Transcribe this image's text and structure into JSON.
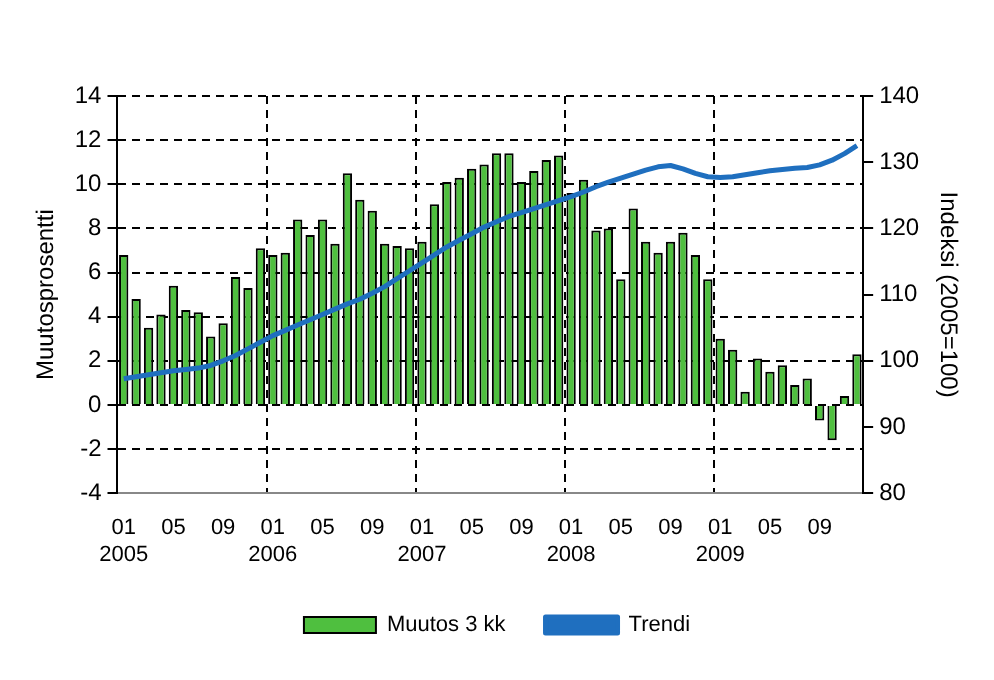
{
  "chart_data": {
    "type": "bar",
    "ylabel": "Muutosprosentti",
    "y2label": "Indeksi (2005=100)",
    "categories": [
      "01\n2005",
      null,
      null,
      null,
      "05",
      null,
      null,
      null,
      "09",
      null,
      null,
      null,
      "01\n2006",
      null,
      null,
      null,
      "05",
      null,
      null,
      null,
      "09",
      null,
      null,
      null,
      "01\n2007",
      null,
      null,
      null,
      "05",
      null,
      null,
      null,
      "09",
      null,
      null,
      null,
      "01\n2008",
      null,
      null,
      null,
      "05",
      null,
      null,
      null,
      "09",
      null,
      null,
      null,
      "01\n2009",
      null,
      null,
      null,
      "05",
      null,
      null,
      null,
      "09",
      null,
      null,
      null
    ],
    "series": [
      {
        "name": "Muutos 3 kk",
        "color": "#4fbf3f",
        "values": [
          6.8,
          4.8,
          3.5,
          4.1,
          5.4,
          4.3,
          4.2,
          3.1,
          3.7,
          5.8,
          5.3,
          7.1,
          6.8,
          6.9,
          8.4,
          7.7,
          8.4,
          7.3,
          10.5,
          9.3,
          8.8,
          7.3,
          7.2,
          7.1,
          7.4,
          9.1,
          10.1,
          10.3,
          10.7,
          10.9,
          11.4,
          11.4,
          10.1,
          10.6,
          11.1,
          11.3,
          9.6,
          10.2,
          7.9,
          8.0,
          5.7,
          8.9,
          7.4,
          6.9,
          7.4,
          7.8,
          6.8,
          5.7,
          3.0,
          2.5,
          0.6,
          2.1,
          1.5,
          1.8,
          0.9,
          1.2,
          -0.7,
          -1.6,
          0.4,
          2.3
        ]
      },
      {
        "name": "Trendi",
        "type": "line",
        "axis": "y2",
        "color": "#1f6fbf",
        "values": [
          97.3,
          97.6,
          97.9,
          98.2,
          98.5,
          98.7,
          98.9,
          99.3,
          100.0,
          100.8,
          101.8,
          102.8,
          103.8,
          104.6,
          105.4,
          106.2,
          107.0,
          107.8,
          108.6,
          109.3,
          110.2,
          111.2,
          112.4,
          113.6,
          114.8,
          116.0,
          117.2,
          118.2,
          119.2,
          120.2,
          121.0,
          121.8,
          122.4,
          123.0,
          123.6,
          124.2,
          124.8,
          125.5,
          126.3,
          127.0,
          127.6,
          128.2,
          128.8,
          129.3,
          129.5,
          129.0,
          128.3,
          127.8,
          127.7,
          127.8,
          128.1,
          128.4,
          128.7,
          128.9,
          129.1,
          129.2,
          129.6,
          130.3,
          131.3,
          132.5
        ]
      }
    ],
    "ylim": [
      -4,
      14
    ],
    "yticks": [
      -4,
      -2,
      0,
      2,
      4,
      6,
      8,
      10,
      12,
      14
    ],
    "y2lim": [
      80,
      140
    ],
    "y2ticks": [
      80,
      90,
      100,
      110,
      120,
      130,
      140
    ],
    "grid": true,
    "legend": "bottom",
    "marker": "none",
    "line_style": "solid"
  }
}
